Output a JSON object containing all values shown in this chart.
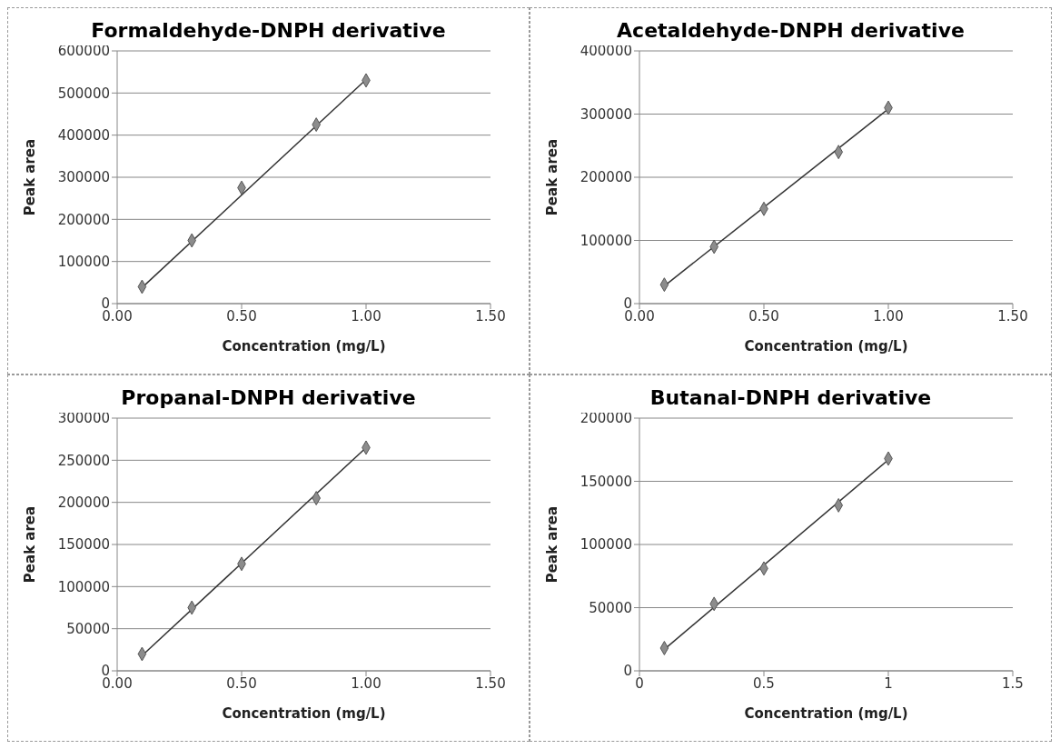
{
  "chart_data": [
    {
      "type": "scatter",
      "title": "Formaldehyde-DNPH derivative",
      "xlabel": "Concentration (mg/L)",
      "ylabel": "Peak area",
      "xlim": [
        0,
        1.5
      ],
      "xticks": [
        {
          "value": 0,
          "label": "0.00"
        },
        {
          "value": 0.5,
          "label": "0.50"
        },
        {
          "value": 1,
          "label": "1.00"
        },
        {
          "value": 1.5,
          "label": "1.50"
        }
      ],
      "ylim": [
        0,
        600000
      ],
      "yticks": [
        0,
        100000,
        200000,
        300000,
        400000,
        500000,
        600000
      ],
      "grid": "y",
      "series": [
        {
          "marker": "diamond",
          "color": "#8c8c8c",
          "x": [
            0.1,
            0.3,
            0.5,
            0.8,
            1.0
          ],
          "values": [
            40000,
            150000,
            275000,
            425000,
            530000
          ]
        },
        {
          "type": "line",
          "line_style": "solid",
          "color": "#333333",
          "x": [
            0.1,
            1.0
          ],
          "values": [
            38000,
            532000
          ]
        }
      ]
    },
    {
      "type": "scatter",
      "title": "Acetaldehyde-DNPH derivative",
      "xlabel": "Concentration (mg/L)",
      "ylabel": "Peak area",
      "xlim": [
        0,
        1.5
      ],
      "xticks": [
        {
          "value": 0,
          "label": "0.00"
        },
        {
          "value": 0.5,
          "label": "0.50"
        },
        {
          "value": 1,
          "label": "1.00"
        },
        {
          "value": 1.5,
          "label": "1.50"
        }
      ],
      "ylim": [
        0,
        400000
      ],
      "yticks": [
        0,
        100000,
        200000,
        300000,
        400000
      ],
      "grid": "y",
      "series": [
        {
          "marker": "diamond",
          "color": "#8c8c8c",
          "x": [
            0.1,
            0.3,
            0.5,
            0.8,
            1.0
          ],
          "values": [
            30000,
            90000,
            150000,
            240000,
            310000
          ]
        },
        {
          "type": "line",
          "line_style": "solid",
          "color": "#333333",
          "x": [
            0.1,
            1.0
          ],
          "values": [
            28000,
            308000
          ]
        }
      ]
    },
    {
      "type": "scatter",
      "title": "Propanal-DNPH derivative",
      "xlabel": "Concentration (mg/L)",
      "ylabel": "Peak area",
      "xlim": [
        0,
        1.5
      ],
      "xticks": [
        {
          "value": 0,
          "label": "0.00"
        },
        {
          "value": 0.5,
          "label": "0.50"
        },
        {
          "value": 1,
          "label": "1.00"
        },
        {
          "value": 1.5,
          "label": "1.50"
        }
      ],
      "ylim": [
        0,
        300000
      ],
      "yticks": [
        0,
        50000,
        100000,
        150000,
        200000,
        250000,
        300000
      ],
      "grid": "y",
      "series": [
        {
          "marker": "diamond",
          "color": "#8c8c8c",
          "x": [
            0.1,
            0.3,
            0.5,
            0.8,
            1.0
          ],
          "values": [
            20000,
            75000,
            127000,
            205000,
            265000
          ]
        },
        {
          "type": "line",
          "line_style": "solid",
          "color": "#333333",
          "x": [
            0.1,
            1.0
          ],
          "values": [
            18000,
            265000
          ]
        }
      ]
    },
    {
      "type": "scatter",
      "title": "Butanal-DNPH derivative",
      "xlabel": "Concentration (mg/L)",
      "ylabel": "Peak area",
      "xlim": [
        0,
        1.5
      ],
      "xticks": [
        0,
        0.5,
        1,
        1.5
      ],
      "ylim": [
        0,
        200000
      ],
      "yticks": [
        0,
        50000,
        100000,
        150000,
        200000
      ],
      "grid": "y",
      "series": [
        {
          "marker": "diamond",
          "color": "#8c8c8c",
          "x": [
            0.1,
            0.3,
            0.5,
            0.8,
            1.0
          ],
          "values": [
            18000,
            53000,
            81000,
            131000,
            168000
          ]
        },
        {
          "type": "line",
          "line_style": "solid",
          "color": "#333333",
          "x": [
            0.1,
            1.0
          ],
          "values": [
            17000,
            167000
          ]
        }
      ]
    }
  ]
}
